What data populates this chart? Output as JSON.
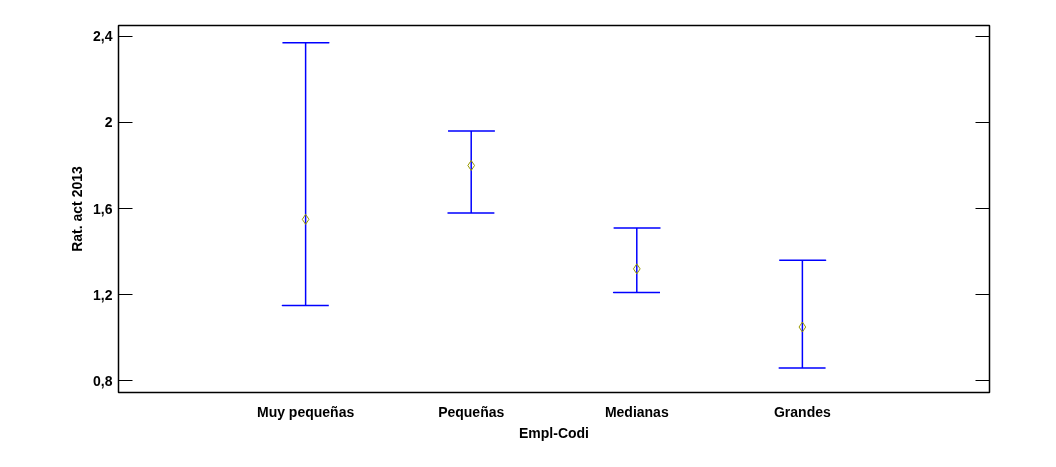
{
  "chart_data": {
    "type": "scatter",
    "xlabel": "Empl-Codi",
    "ylabel": "Rat. act 2013",
    "categories": [
      "Muy pequeñas",
      "Pequeñas",
      "Medianas",
      "Grandes"
    ],
    "series": [
      {
        "color": "#0000ff",
        "colors": [
          "#9a9a00",
          "#9a9a00",
          "#9a9a00",
          "#9a9a00"
        ],
        "values": [
          1.55,
          1.8,
          1.32,
          1.05
        ],
        "errors": [
          [
            1.15,
            2.37
          ],
          [
            1.58,
            1.96
          ],
          [
            1.21,
            1.51
          ],
          [
            0.86,
            1.36
          ]
        ]
      }
    ],
    "marker": "diamond",
    "grid": false,
    "ylim": [
      0.746,
      2.45
    ],
    "yticks": [
      {
        "value": 0.8,
        "label": "0,8"
      },
      {
        "value": 1.2,
        "label": "1,2"
      },
      {
        "value": 1.6,
        "label": "1,6"
      },
      {
        "value": 2.0,
        "label": "2"
      },
      {
        "value": 2.4,
        "label": "2,4"
      }
    ]
  }
}
